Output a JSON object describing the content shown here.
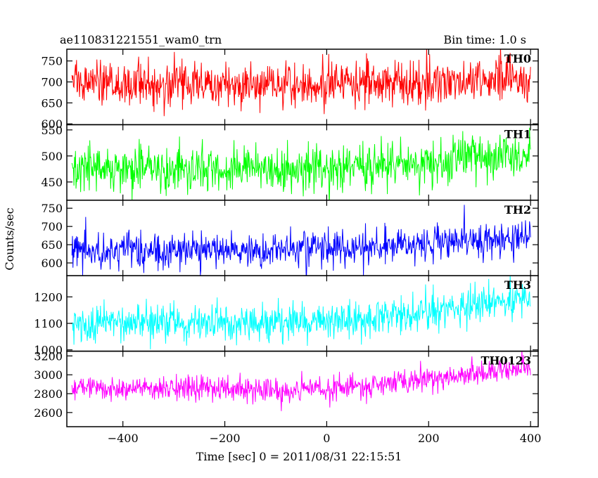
{
  "header": {
    "title": "ae110831221551_wam0_trn",
    "bin_time": "Bin time: 1.0 s"
  },
  "chart_data": {
    "type": "line",
    "xlabel": "Time [sec] 0 = 2011/08/31 22:15:51",
    "ylabel": "Counts/sec",
    "xlim": [
      -510,
      415
    ],
    "x_ticks": [
      -400,
      -200,
      0,
      200,
      400
    ],
    "x_tick_labels": [
      "−400",
      "−200",
      "0",
      "200",
      "400"
    ],
    "x_range": [
      -500,
      400
    ],
    "bin_time_s": 1.0,
    "grid": false,
    "panels": [
      {
        "name": "TH0",
        "color": "#ff0000",
        "ylim": [
          598,
          778
        ],
        "y_ticks": [
          600,
          650,
          700,
          750
        ],
        "y_tick_labels": [
          "600",
          "650",
          "700",
          "750"
        ],
        "trend": [
          [
            -500,
            695
          ],
          [
            -400,
            698
          ],
          [
            -300,
            697
          ],
          [
            -200,
            694
          ],
          [
            -100,
            693
          ],
          [
            0,
            696
          ],
          [
            100,
            697
          ],
          [
            200,
            698
          ],
          [
            300,
            703
          ],
          [
            400,
            712
          ]
        ],
        "noise": 27
      },
      {
        "name": "TH1",
        "color": "#00ff00",
        "ylim": [
          415,
          560
        ],
        "y_ticks": [
          450,
          500,
          550
        ],
        "y_tick_labels": [
          "450",
          "500",
          "550"
        ],
        "trend": [
          [
            -500,
            478
          ],
          [
            -400,
            477
          ],
          [
            -300,
            478
          ],
          [
            -200,
            476
          ],
          [
            -100,
            474
          ],
          [
            0,
            476
          ],
          [
            100,
            480
          ],
          [
            200,
            485
          ],
          [
            300,
            492
          ],
          [
            400,
            500
          ]
        ],
        "noise": 22
      },
      {
        "name": "TH2",
        "color": "#0000ff",
        "ylim": [
          565,
          772
        ],
        "y_ticks": [
          600,
          650,
          700,
          750
        ],
        "y_tick_labels": [
          "600",
          "650",
          "700",
          "750"
        ],
        "trend": [
          [
            -500,
            638
          ],
          [
            -400,
            636
          ],
          [
            -300,
            637
          ],
          [
            -200,
            633
          ],
          [
            -100,
            634
          ],
          [
            0,
            638
          ],
          [
            100,
            646
          ],
          [
            200,
            654
          ],
          [
            300,
            663
          ],
          [
            400,
            676
          ]
        ],
        "noise": 24
      },
      {
        "name": "TH3",
        "color": "#00ffff",
        "ylim": [
          995,
          1280
        ],
        "y_ticks": [
          1000,
          1100,
          1200
        ],
        "y_tick_labels": [
          "1000",
          "1100",
          "1200"
        ],
        "trend": [
          [
            -500,
            1098
          ],
          [
            -400,
            1100
          ],
          [
            -300,
            1103
          ],
          [
            -200,
            1100
          ],
          [
            -100,
            1102
          ],
          [
            0,
            1110
          ],
          [
            100,
            1125
          ],
          [
            200,
            1145
          ],
          [
            300,
            1170
          ],
          [
            400,
            1200
          ]
        ],
        "noise": 34
      },
      {
        "name": "TH0123",
        "color": "#ff00ff",
        "ylim": [
          2450,
          3250
        ],
        "y_ticks": [
          2600,
          2800,
          3000,
          3200
        ],
        "y_tick_labels": [
          "2600",
          "2800",
          "3000",
          "3200"
        ],
        "trend": [
          [
            -500,
            2860
          ],
          [
            -400,
            2860
          ],
          [
            -300,
            2855
          ],
          [
            -200,
            2835
          ],
          [
            -100,
            2830
          ],
          [
            0,
            2860
          ],
          [
            100,
            2900
          ],
          [
            200,
            2960
          ],
          [
            300,
            3020
          ],
          [
            400,
            3080
          ]
        ],
        "noise": 65
      }
    ]
  }
}
